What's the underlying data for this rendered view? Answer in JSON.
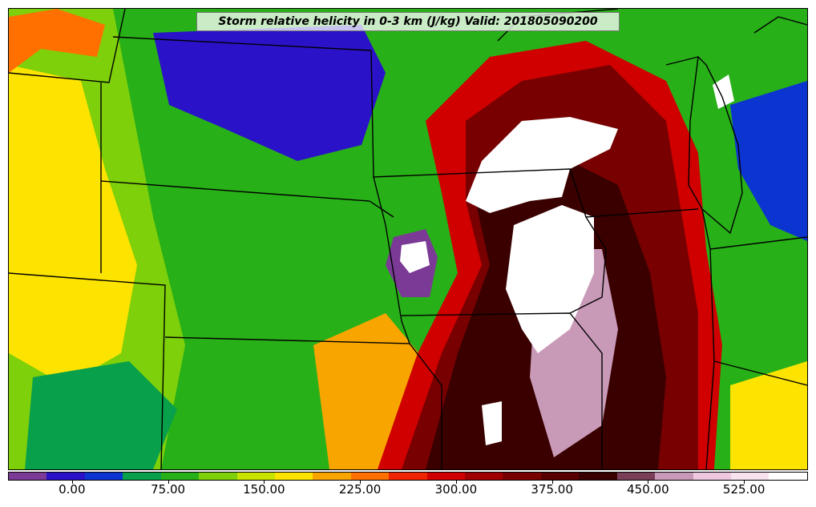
{
  "title": "Storm relative helicity in 0-3 km (J/kg) Valid: 201805090200",
  "colorbar": {
    "min": -50,
    "max": 575,
    "colors": [
      "#7a3a96",
      "#2a12c8",
      "#0c34d0",
      "#08a04a",
      "#28b018",
      "#7ed00a",
      "#c8e400",
      "#fde400",
      "#f9a500",
      "#ff7000",
      "#f02400",
      "#d00000",
      "#a00000",
      "#780000",
      "#580000",
      "#3a0000",
      "#7a3e58",
      "#c99ab8",
      "#efc8e0",
      "#f8e2ee",
      "#ffffff"
    ],
    "ticks": [
      {
        "value": 0,
        "label": "0.00"
      },
      {
        "value": 75,
        "label": "75.00"
      },
      {
        "value": 150,
        "label": "150.00"
      },
      {
        "value": 225,
        "label": "225.00"
      },
      {
        "value": 300,
        "label": "300.00"
      },
      {
        "value": 375,
        "label": "375.00"
      },
      {
        "value": 450,
        "label": "450.00"
      },
      {
        "value": 525,
        "label": "525.00"
      }
    ]
  },
  "field_regions": [
    {
      "id": "west-lime-base",
      "color": "#7ed00a"
    },
    {
      "id": "west-yellow",
      "color": "#fde400"
    },
    {
      "id": "northwest-orange",
      "color": "#ff7000"
    },
    {
      "id": "plains-green",
      "color": "#28b018"
    },
    {
      "id": "dakota-blue",
      "color": "#2a12c8"
    },
    {
      "id": "southwest-green",
      "color": "#08a04a"
    },
    {
      "id": "central-orange",
      "color": "#f9a500"
    },
    {
      "id": "east-red-outer",
      "color": "#d00000"
    },
    {
      "id": "east-darkred",
      "color": "#780000"
    },
    {
      "id": "east-maroon-core",
      "color": "#3a0000"
    },
    {
      "id": "east-mauve",
      "color": "#c99ab8"
    },
    {
      "id": "core-white-north",
      "color": "#ffffff"
    },
    {
      "id": "core-white-central",
      "color": "#ffffff"
    },
    {
      "id": "core-white-south",
      "color": "#ffffff"
    },
    {
      "id": "nebraska-purple",
      "color": "#7a3a96"
    },
    {
      "id": "nebraska-white",
      "color": "#ffffff"
    },
    {
      "id": "great-lakes-green",
      "color": "#28b018"
    },
    {
      "id": "great-lakes-blue",
      "color": "#0c34d0"
    },
    {
      "id": "lake-michigan-white",
      "color": "#ffffff"
    },
    {
      "id": "ohio-yellow",
      "color": "#fde400"
    }
  ],
  "boundaries": {
    "color": "#000000"
  }
}
